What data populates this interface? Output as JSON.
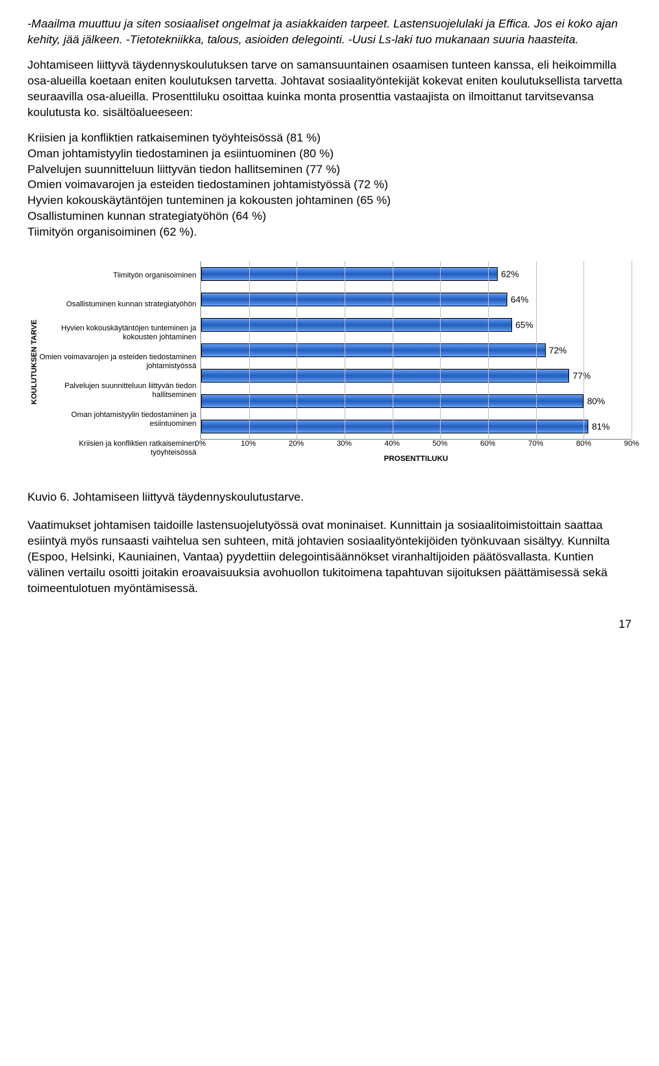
{
  "paragraphs": {
    "p1": "-Maailma muuttuu ja siten sosiaaliset ongelmat ja asiakkaiden tarpeet. Lastensuojelulaki ja Effica. Jos ei koko ajan kehity, jää jälkeen.\n-Tietotekniikka, talous, asioiden delegointi.\n-Uusi Ls-laki tuo mukanaan suuria haasteita.",
    "p2": "Johtamiseen liittyvä täydennyskoulutuksen tarve on samansuuntainen osaamisen tunteen kanssa, eli heikoimmilla osa-alueilla koetaan eniten koulutuksen tarvetta. Johtavat sosiaalityöntekijät kokevat eniten koulutuksellista tarvetta seuraavilla osa-alueilla. Prosenttiluku osoittaa kuinka monta prosenttia vastaajista on ilmoittanut tarvitsevansa koulutusta ko. sisältöalueeseen:",
    "p3": "Kriisien ja konfliktien ratkaiseminen työyhteisössä (81 %)\nOman johtamistyylin tiedostaminen ja esiintuominen (80 %)\nPalvelujen suunnitteluun liittyvän tiedon hallitseminen (77 %)\nOmien voimavarojen ja esteiden tiedostaminen johtamistyössä (72 %)\nHyvien kokouskäytäntöjen tunteminen ja kokousten johtaminen (65 %)\nOsallistuminen kunnan strategiatyöhön (64 %)\nTiimityön organisoiminen (62 %).",
    "p4": "Vaatimukset johtamisen taidoille lastensuojelutyössä ovat moninaiset. Kunnittain ja sosiaalitoimistoittain saattaa esiintyä myös runsaasti vaihtelua sen suhteen, mitä johtavien sosiaalityöntekijöiden työnkuvaan sisältyy. Kunnilta (Espoo, Helsinki, Kauniainen, Vantaa) pyydettiin delegointisäännökset viranhaltijoiden päätösvallasta. Kuntien välinen vertailu osoitti joitakin eroavaisuuksia avohuollon tukitoimena tapahtuvan sijoituksen päättämisessä sekä toimeentulotuen myöntämisessä."
  },
  "chart": {
    "type": "bar",
    "y_axis_title": "KOULUTUKSEN TARVE",
    "x_axis_title": "PROSENTTILUKU",
    "xlim_max": 90,
    "x_ticks": [
      "0%",
      "10%",
      "20%",
      "30%",
      "40%",
      "50%",
      "60%",
      "70%",
      "80%",
      "90%"
    ],
    "categories": [
      "Tiimityön organisoiminen",
      "Osallistuminen kunnan strategiatyöhön",
      "Hyvien kokouskäytäntöjen tunteminen ja kokousten johtaminen",
      "Omien voimavarojen ja esteiden tiedostaminen johtamistyössä",
      "Palvelujen suunnitteluun liittyvän tiedon hallitseminen",
      "Oman johtamistyylin tiedostaminen ja esiintuominen",
      "Kriisien ja konfliktien ratkaiseminen työyhteisössä"
    ],
    "values": [
      62,
      64,
      65,
      72,
      77,
      80,
      81
    ],
    "value_labels": [
      "62%",
      "64%",
      "65%",
      "72%",
      "77%",
      "80%",
      "81%"
    ],
    "bar_fill": "#1f5fbf",
    "bar_stroke": "#000000",
    "grid_color": "#c0c0c0",
    "background": "#ffffff",
    "label_fontsize": 11,
    "value_fontsize": 13
  },
  "caption": "Kuvio 6. Johtamiseen liittyvä täydennyskoulutustarve.",
  "page_number": "17"
}
